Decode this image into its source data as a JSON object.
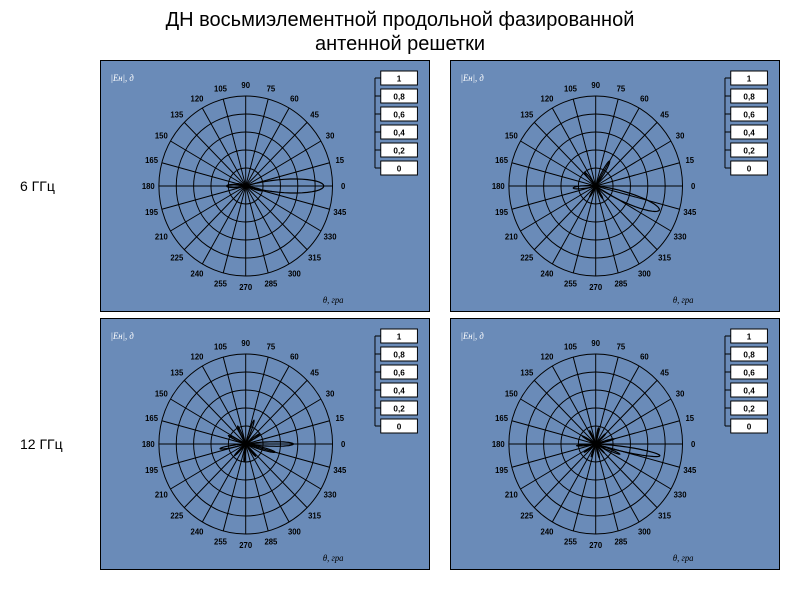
{
  "title_line1": "ДН восьмиэлементной продольной фазированной",
  "title_line2": "антенной решетки",
  "row_labels": [
    "6 ГГц",
    "12 ГГц"
  ],
  "style": {
    "panel_bg": "#6a8bb8",
    "panel_border": "#000000",
    "grid_stroke": "#000000",
    "page_bg": "#ffffff",
    "title_fontsize": 20,
    "angle_label_fontsize": 8,
    "scale_text_fontsize": 8.5
  },
  "polar_common": {
    "angle_labels_deg": [
      0,
      15,
      30,
      45,
      60,
      75,
      90,
      105,
      120,
      135,
      150,
      165,
      180,
      195,
      210,
      225,
      240,
      255,
      270,
      285,
      300,
      315,
      330,
      345
    ],
    "rings": [
      0.2,
      0.4,
      0.6,
      0.8,
      1.0
    ],
    "spokes_deg": [
      0,
      15,
      30,
      45,
      60,
      75,
      90,
      105,
      120,
      135,
      150,
      165,
      180,
      195,
      210,
      225,
      240,
      255,
      270,
      285,
      300,
      315,
      330,
      345
    ],
    "scale_ticks": [
      "1",
      "0,8",
      "0,6",
      "0,4",
      "0,2",
      "0"
    ],
    "x_axis_label": "θ, гра",
    "y_axis_label": "|Eн|, д"
  },
  "charts": [
    {
      "id": "tl",
      "lobes": [
        {
          "angle_deg": 0,
          "r": 0.9,
          "width_deg": 38
        },
        {
          "angle_deg": 345,
          "r": 0.2,
          "width_deg": 20
        },
        {
          "angle_deg": 180,
          "r": 0.22,
          "width_deg": 35
        },
        {
          "angle_deg": 165,
          "r": 0.1,
          "width_deg": 18
        }
      ]
    },
    {
      "id": "tr",
      "lobes": [
        {
          "angle_deg": 340,
          "r": 0.78,
          "width_deg": 34
        },
        {
          "angle_deg": 60,
          "r": 0.32,
          "width_deg": 22
        },
        {
          "angle_deg": 130,
          "r": 0.2,
          "width_deg": 20
        },
        {
          "angle_deg": 185,
          "r": 0.26,
          "width_deg": 26
        },
        {
          "angle_deg": 240,
          "r": 0.14,
          "width_deg": 18
        },
        {
          "angle_deg": 300,
          "r": 0.16,
          "width_deg": 18
        }
      ]
    },
    {
      "id": "bl",
      "lobes": [
        {
          "angle_deg": 0,
          "r": 0.55,
          "width_deg": 20
        },
        {
          "angle_deg": 345,
          "r": 0.35,
          "width_deg": 18
        },
        {
          "angle_deg": 35,
          "r": 0.2,
          "width_deg": 16
        },
        {
          "angle_deg": 70,
          "r": 0.28,
          "width_deg": 16
        },
        {
          "angle_deg": 115,
          "r": 0.22,
          "width_deg": 16
        },
        {
          "angle_deg": 155,
          "r": 0.22,
          "width_deg": 16
        },
        {
          "angle_deg": 190,
          "r": 0.3,
          "width_deg": 18
        },
        {
          "angle_deg": 225,
          "r": 0.18,
          "width_deg": 16
        },
        {
          "angle_deg": 265,
          "r": 0.2,
          "width_deg": 16
        },
        {
          "angle_deg": 310,
          "r": 0.18,
          "width_deg": 16
        }
      ]
    },
    {
      "id": "br",
      "lobes": [
        {
          "angle_deg": 350,
          "r": 0.75,
          "width_deg": 18
        },
        {
          "angle_deg": 338,
          "r": 0.3,
          "width_deg": 14
        },
        {
          "angle_deg": 15,
          "r": 0.22,
          "width_deg": 14
        },
        {
          "angle_deg": 45,
          "r": 0.16,
          "width_deg": 14
        },
        {
          "angle_deg": 80,
          "r": 0.18,
          "width_deg": 14
        },
        {
          "angle_deg": 115,
          "r": 0.16,
          "width_deg": 14
        },
        {
          "angle_deg": 150,
          "r": 0.18,
          "width_deg": 14
        },
        {
          "angle_deg": 185,
          "r": 0.22,
          "width_deg": 14
        },
        {
          "angle_deg": 215,
          "r": 0.16,
          "width_deg": 14
        },
        {
          "angle_deg": 250,
          "r": 0.15,
          "width_deg": 14
        },
        {
          "angle_deg": 285,
          "r": 0.16,
          "width_deg": 14
        },
        {
          "angle_deg": 315,
          "r": 0.14,
          "width_deg": 14
        }
      ]
    }
  ]
}
